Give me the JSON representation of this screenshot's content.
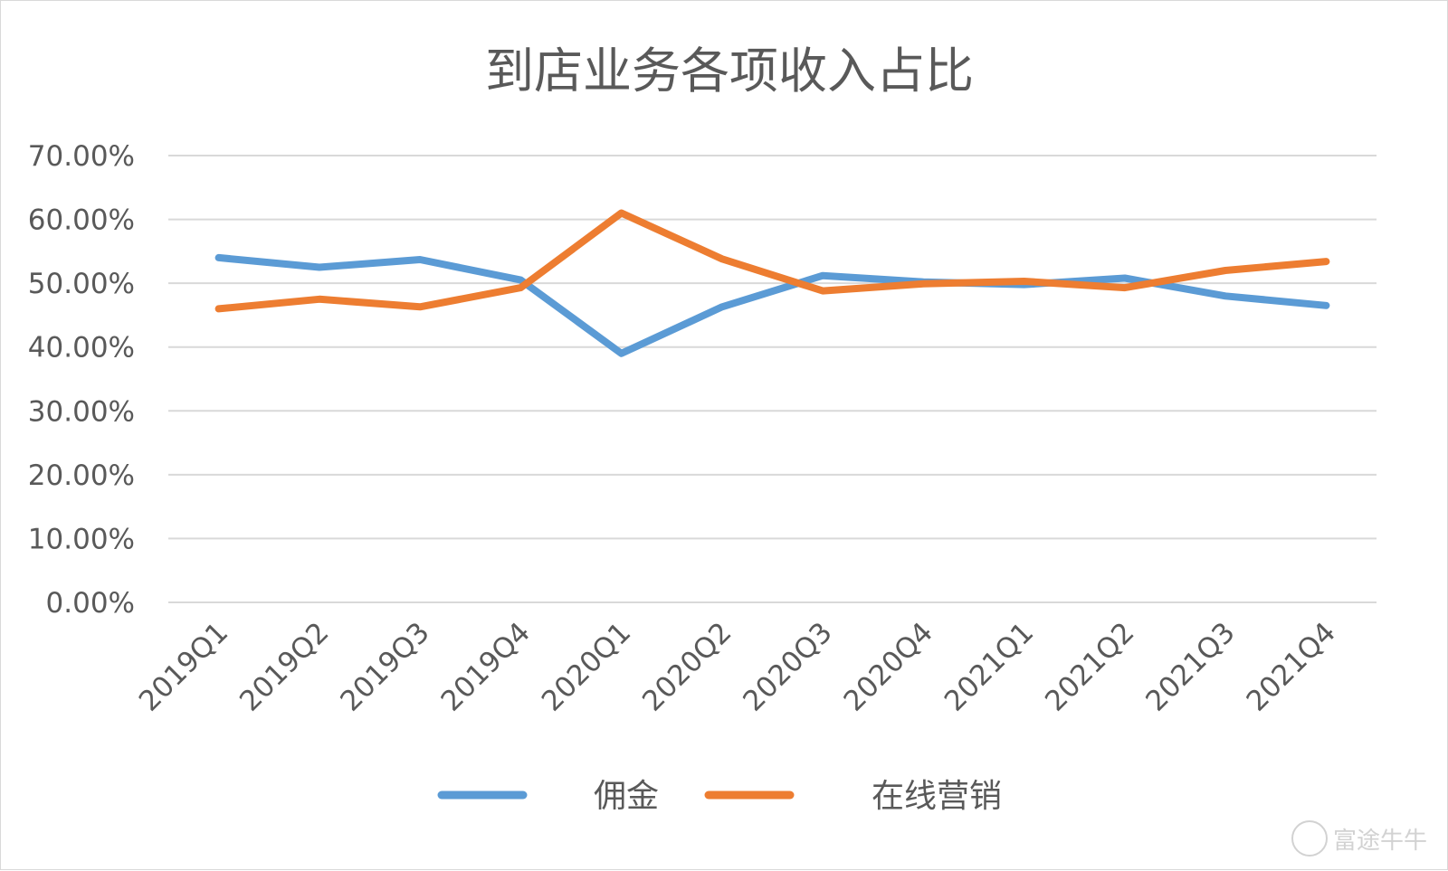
{
  "chart_data": {
    "type": "line",
    "title": "到店业务各项收入占比",
    "categories": [
      "2019Q1",
      "2019Q2",
      "2019Q3",
      "2019Q4",
      "2020Q1",
      "2020Q2",
      "2020Q3",
      "2020Q4",
      "2021Q1",
      "2021Q2",
      "2021Q3",
      "2021Q4"
    ],
    "y_ticks": [
      "0.00%",
      "10.00%",
      "20.00%",
      "30.00%",
      "40.00%",
      "50.00%",
      "60.00%",
      "70.00%"
    ],
    "ylim": [
      0,
      70
    ],
    "y_unit": "%",
    "grid": true,
    "legend_position": "bottom",
    "series": [
      {
        "name": "佣金",
        "color": "#5b9bd5",
        "values": [
          54.0,
          52.5,
          53.7,
          50.5,
          39.0,
          46.3,
          51.2,
          50.2,
          49.8,
          50.8,
          48.0,
          46.5
        ]
      },
      {
        "name": "在线营销",
        "color": "#ed7d31",
        "values": [
          46.0,
          47.5,
          46.3,
          49.3,
          61.0,
          53.8,
          48.8,
          49.9,
          50.3,
          49.3,
          52.0,
          53.4
        ]
      }
    ]
  },
  "watermark": {
    "text": "富途牛牛",
    "icon": "futu-logo-icon"
  }
}
